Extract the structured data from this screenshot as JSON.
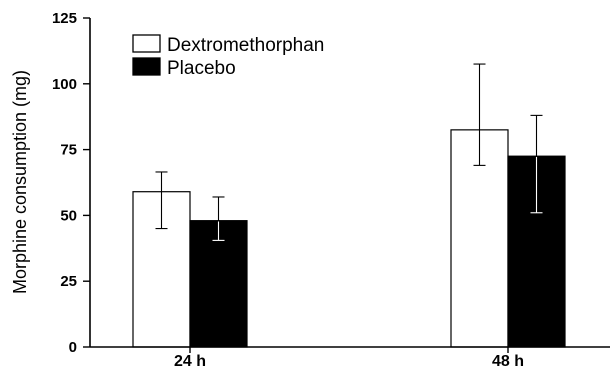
{
  "chart_data": {
    "type": "bar",
    "title": "",
    "xlabel": "",
    "ylabel": "Morphine consumption (mg)",
    "ylim": [
      0,
      125
    ],
    "yticks": [
      0,
      25,
      50,
      75,
      100,
      125
    ],
    "categories": [
      "24 h",
      "48 h"
    ],
    "legend_position": "top-left",
    "grid": false,
    "series": [
      {
        "name": "Dextromethorphan",
        "fill": "#ffffff",
        "values": [
          59,
          82.5
        ],
        "error_low": [
          45,
          69
        ],
        "error_high": [
          66.5,
          107.5
        ]
      },
      {
        "name": "Placebo",
        "fill": "#000000",
        "values": [
          48,
          72.5
        ],
        "error_low": [
          40.5,
          51
        ],
        "error_high": [
          57,
          88
        ]
      }
    ]
  }
}
